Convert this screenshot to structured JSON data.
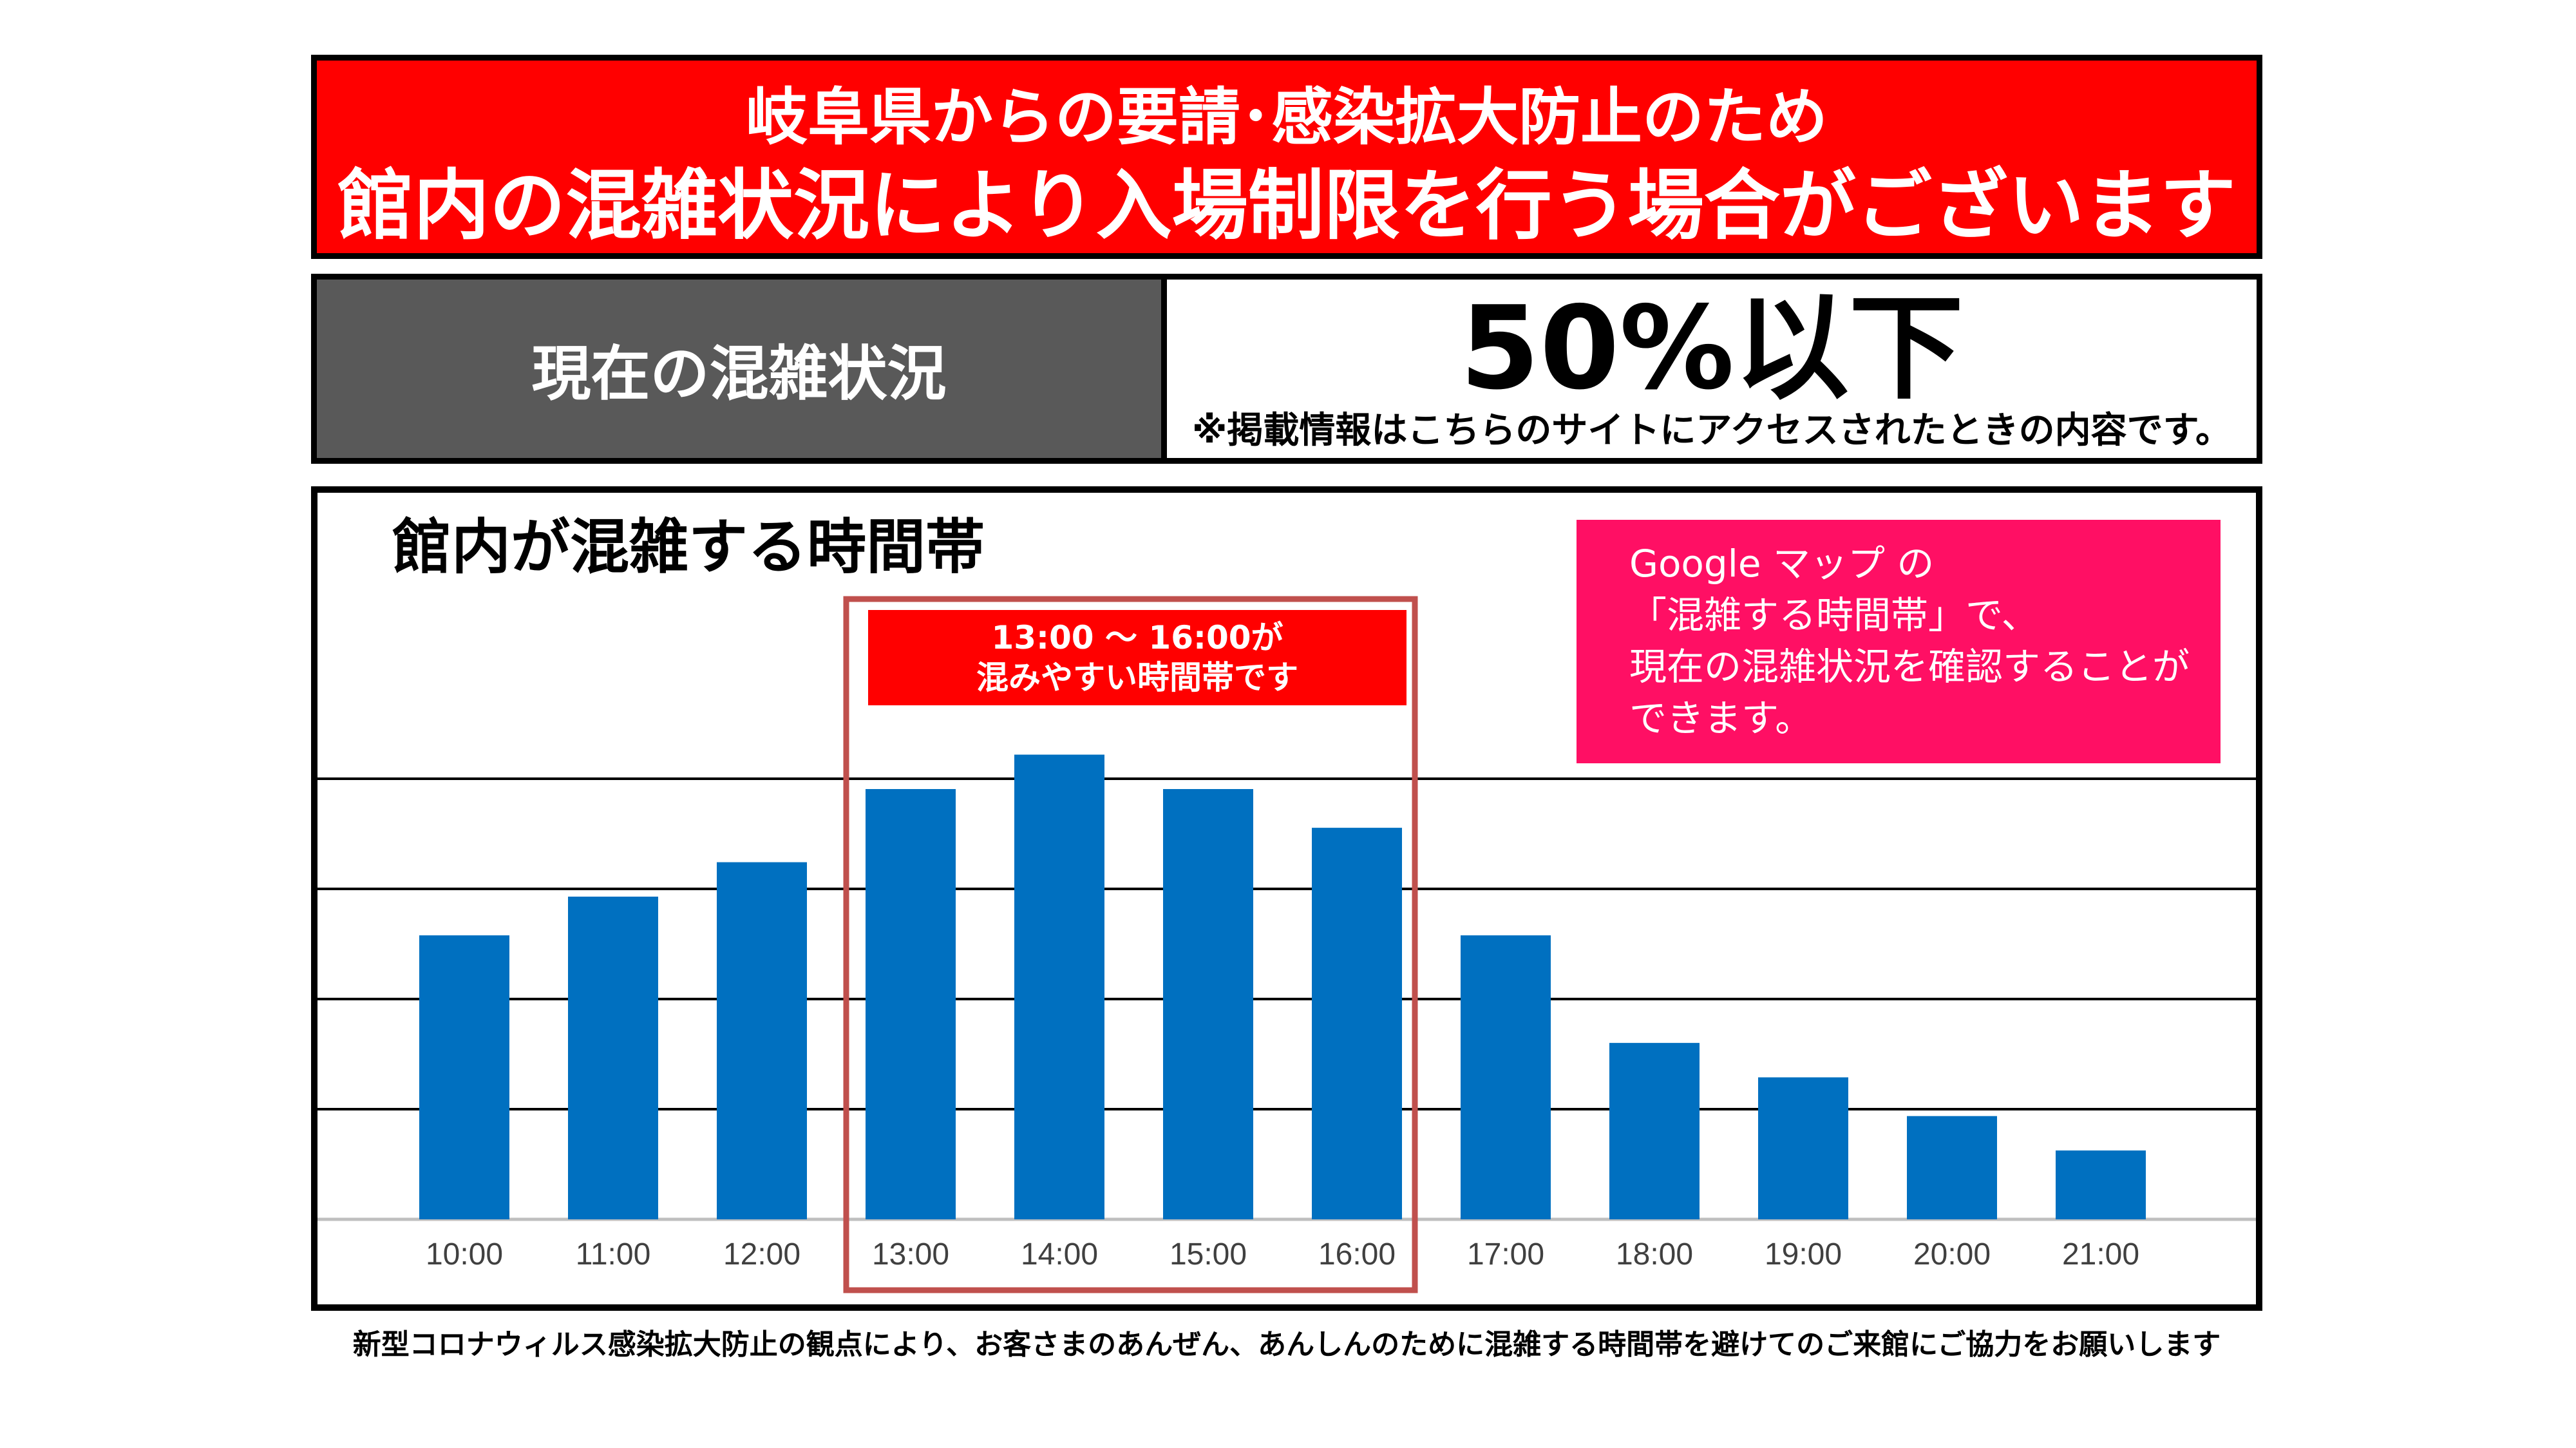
{
  "banner": {
    "line1": "岐阜県からの要請･感染拡大防止のため",
    "line2": "館内の混雑状況により入場制限を行う場合がございます"
  },
  "status": {
    "label": "現在の混雑状況",
    "value": "50%以下",
    "note": "※掲載情報はこちらのサイトにアクセスされたときの内容です。"
  },
  "chart_section": {
    "title": "館内が混雑する時間帯",
    "highlight": {
      "line1": "13:00 ～ 16:00が",
      "line2": "混みやすい時間帯です"
    },
    "info_box": {
      "line1": "Google マップ の",
      "line2": "「混雑する時間帯」で、",
      "line3": "現在の混雑状況を確認することが",
      "line4": "できます。"
    }
  },
  "chart_data": {
    "type": "bar",
    "categories": [
      "10:00",
      "11:00",
      "12:00",
      "13:00",
      "14:00",
      "15:00",
      "16:00",
      "17:00",
      "18:00",
      "19:00",
      "20:00",
      "21:00"
    ],
    "values": [
      66,
      75,
      83,
      100,
      108,
      100,
      91,
      66,
      41,
      33,
      24,
      16
    ],
    "ylim": [
      0,
      125
    ],
    "grid": true,
    "highlight_range": [
      "13:00",
      "16:00"
    ],
    "colors": {
      "bar": "#0070c0",
      "highlight_border": "#c0504d"
    }
  },
  "footer": {
    "text": "新型コロナウィルス感染拡大防止の観点により、お客さまのあんぜん、あんしんのために混雑する時間帯を避けてのご来館にご協力をお願いします"
  }
}
